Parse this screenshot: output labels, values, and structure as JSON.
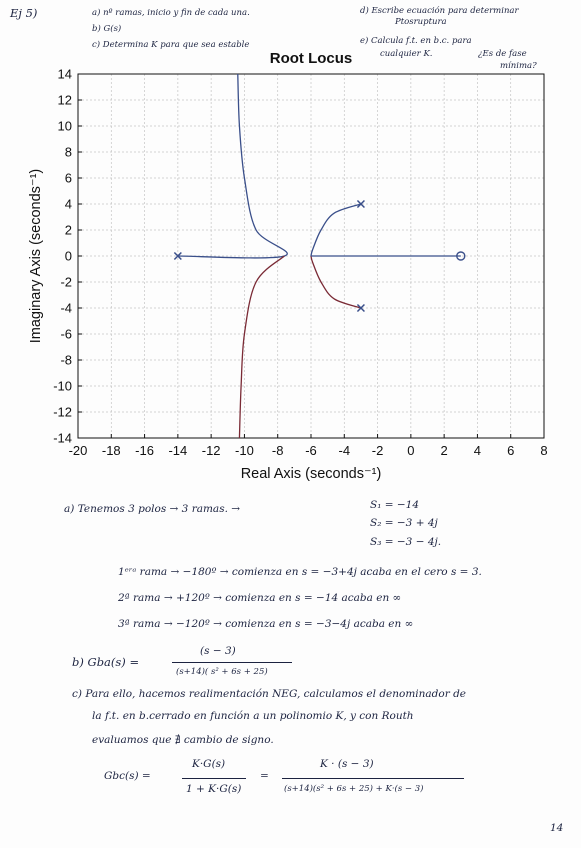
{
  "header": {
    "exercise": "Ej 5)",
    "item_a": "a) nº ramas, inicio y fin de cada una.",
    "item_b": "b) G(s)",
    "item_c": "c) Determina K para que sea estable",
    "item_d1": "d) Escribe ecuación para determinar",
    "item_d2": "Ptosruptura",
    "item_e1": "e) Calcula f.t. en b.c. para",
    "item_e2": "cualquier K.",
    "item_e3": "¿Es de fase",
    "item_e4": "mínima?"
  },
  "chart_data": {
    "type": "line",
    "title": "Root Locus",
    "xlabel": "Real Axis (seconds⁻¹)",
    "ylabel": "Imaginary Axis (seconds⁻¹)",
    "xlim": [
      -20,
      8
    ],
    "ylim": [
      -14,
      14
    ],
    "xticks": [
      -20,
      -18,
      -16,
      -14,
      -12,
      -10,
      -8,
      -6,
      -4,
      -2,
      0,
      2,
      4,
      6,
      8
    ],
    "yticks": [
      14,
      12,
      10,
      8,
      6,
      4,
      2,
      0,
      -2,
      -4,
      -6,
      -8,
      -10,
      -12,
      -14
    ],
    "grid": "dashed",
    "poles": [
      [
        -14,
        0
      ],
      [
        -3,
        4
      ],
      [
        -3,
        -4
      ]
    ],
    "zeros": [
      [
        3,
        0
      ]
    ],
    "series": [
      {
        "color": "#3a4f8a",
        "points": [
          [
            -14,
            0
          ],
          [
            -7.6,
            0
          ],
          [
            -9.3,
            2
          ],
          [
            -10.0,
            6
          ],
          [
            -10.3,
            10
          ],
          [
            -10.4,
            14
          ]
        ]
      },
      {
        "color": "#3a4f8a",
        "points": [
          [
            -3,
            4
          ],
          [
            -4.6,
            3.3
          ],
          [
            -5.4,
            2.0
          ],
          [
            -5.9,
            0.5
          ],
          [
            -6.0,
            0
          ]
        ]
      },
      {
        "color": "#7a2a35",
        "points": [
          [
            -3,
            -4
          ],
          [
            -4.6,
            -3.3
          ],
          [
            -5.4,
            -2.0
          ],
          [
            -5.9,
            -0.5
          ],
          [
            -6.0,
            0
          ]
        ]
      },
      {
        "color": "#7a2a35",
        "points": [
          [
            -7.6,
            0
          ],
          [
            -9.3,
            -2
          ],
          [
            -10.0,
            -6
          ],
          [
            -10.2,
            -10
          ],
          [
            -10.3,
            -14
          ]
        ]
      },
      {
        "color": "#3a4f8a",
        "points": [
          [
            -6.0,
            0
          ],
          [
            3,
            0
          ]
        ]
      }
    ]
  },
  "answers": {
    "a_text": "a) Tenemos 3 polos → 3 ramas. →",
    "s1": "S₁ = −14",
    "s2": "S₂ = −3 + 4j",
    "s3": "S₃ = −3 − 4j.",
    "r1": "1ᵉʳᵃ rama → −180º → comienza en s = −3+4j acaba en el cero s = 3.",
    "r2": "2ª rama → +120º → comienza en s = −14 acaba en ∞",
    "r3": "3ª rama → −120º → comienza en s = −3−4j acaba en ∞",
    "b_label": "b)  Gba(s) =",
    "b_num": "(s − 3)",
    "b_den": "(s+14)( s² + 6s + 25)",
    "c_line1": "c) Para ello, hacemos realimentación NEG, calculamos el denominador de",
    "c_line2": "la f.t. en b.cerrado en función a un polinomio K, y con Routh",
    "c_line3": "evaluamos que  ∄ cambio de signo.",
    "gbc_label": "Gbc(s) =",
    "gbc_num1": "K·G(s)",
    "gbc_den1": "1 + K·G(s)",
    "eq": "=",
    "gbc_num2": "K · (s − 3)",
    "gbc_den2": "(s+14)(s² + 6s + 25) + K·(s − 3)",
    "page_num": "14"
  }
}
